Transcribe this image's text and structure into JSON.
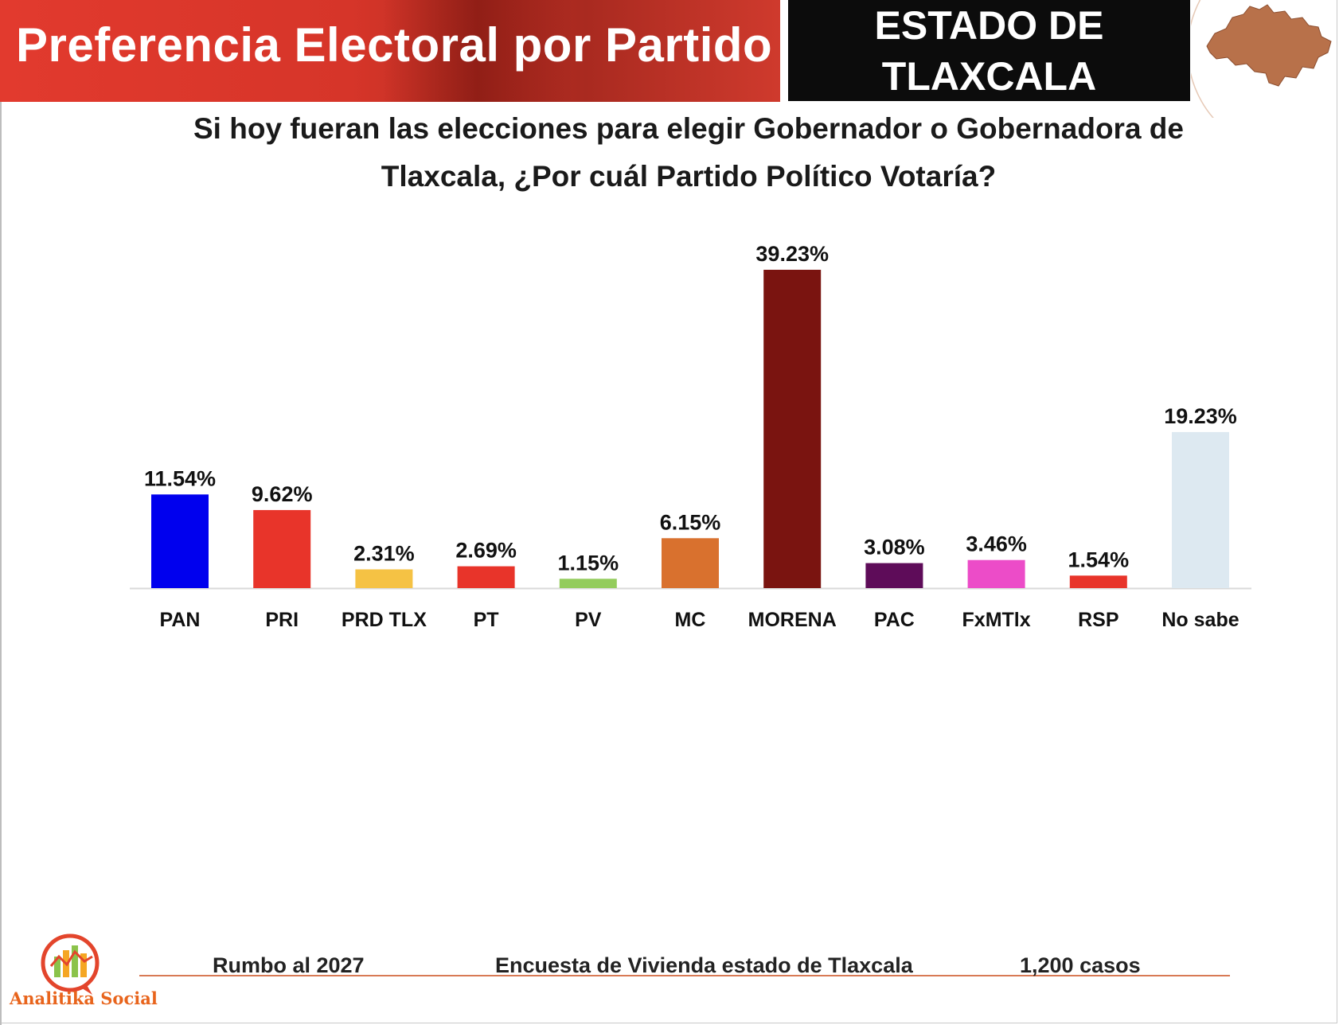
{
  "header": {
    "title": "Preferencia Electoral por Partido",
    "state_line1": "ESTADO DE",
    "state_line2": "TLAXCALA",
    "map_icon": "tlaxcala-map-icon"
  },
  "colors": {
    "title_band": "#e23a2e",
    "state_box": "#0c0c0c",
    "map_fill": "#b8714a",
    "footer_line": "#d87a55"
  },
  "chart_data": {
    "type": "bar",
    "title_line1": "Si hoy fueran las elecciones para elegir Gobernador o Gobernadora de",
    "title_line2": "Tlaxcala, ¿Por cuál Partido Político Votaría?",
    "categories": [
      "PAN",
      "PRI",
      "PRD TLX",
      "PT",
      "PV",
      "MC",
      "MORENA",
      "PAC",
      "FxMTlx",
      "RSP",
      "No sabe"
    ],
    "values": [
      11.54,
      9.62,
      2.31,
      2.69,
      1.15,
      6.15,
      39.23,
      3.08,
      3.46,
      1.54,
      19.23
    ],
    "value_labels": [
      "11.54%",
      "9.62%",
      "2.31%",
      "2.69%",
      "1.15%",
      "6.15%",
      "39.23%",
      "3.08%",
      "3.46%",
      "1.54%",
      "19.23%"
    ],
    "colors": [
      "#0000ee",
      "#e8342a",
      "#f5c244",
      "#e8342a",
      "#93cc5c",
      "#d9712e",
      "#7a1410",
      "#5e0c59",
      "#ec4cc8",
      "#e8342a",
      "#dde9f1"
    ],
    "unit": "%",
    "xlabel": "",
    "ylabel": "",
    "ylim": [
      0,
      40
    ],
    "grid": false,
    "legend": "none"
  },
  "footer": {
    "left": "Rumbo al 2027",
    "center": "Encuesta de Vivienda estado de Tlaxcala",
    "right": "1,200 casos",
    "logo_text": "Analitika Social",
    "logo_icon": "analitika-bar-chart-logo-icon"
  }
}
